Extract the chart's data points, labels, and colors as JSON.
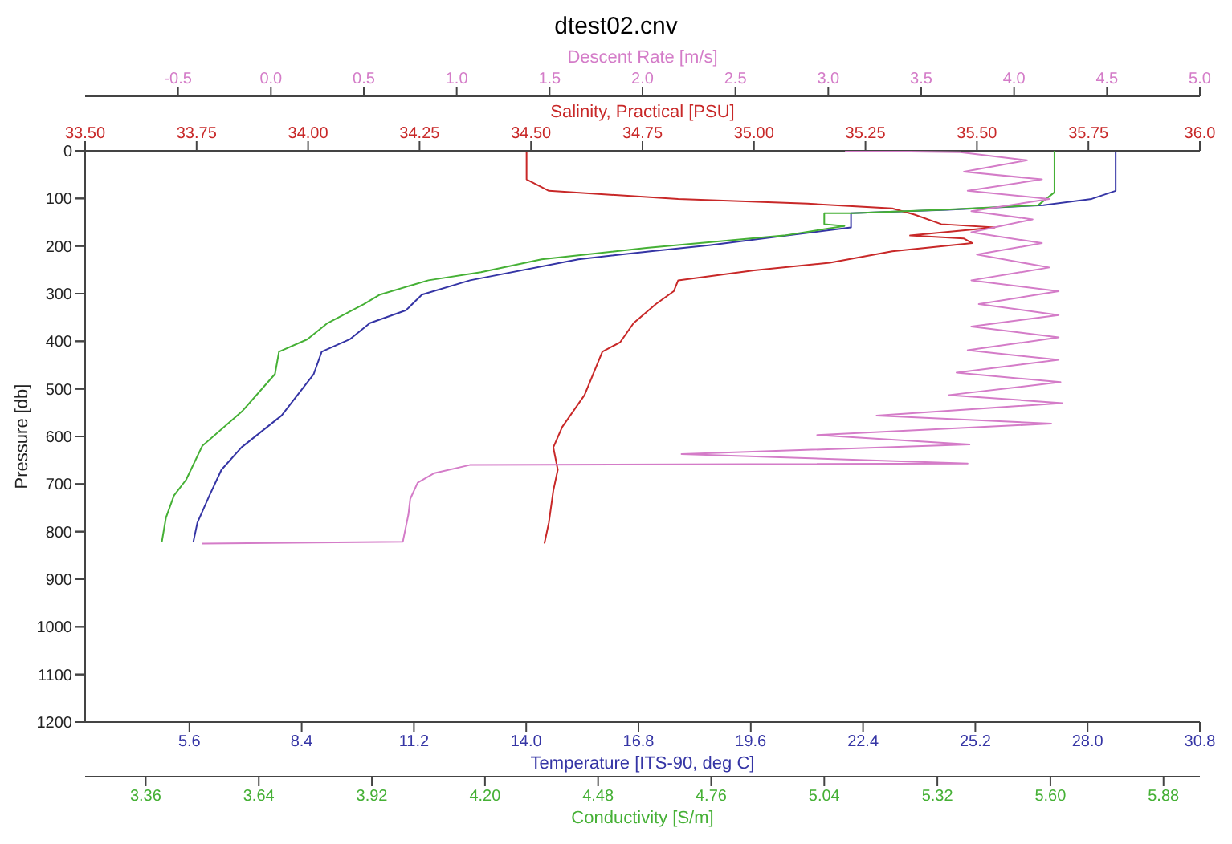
{
  "chart_data": [
    {
      "type": "line",
      "title": "dtest02.cnv",
      "ylabel": "Pressure [db]",
      "ylim": [
        1200,
        0
      ],
      "yticks": [
        0,
        100,
        200,
        300,
        400,
        500,
        600,
        700,
        800,
        900,
        1000,
        1100,
        1200
      ],
      "xlabel": "Temperature [ITS-90, deg C]",
      "xlim": [
        3.0,
        30.8
      ],
      "xticks": [
        {
          "value": 5.6,
          "label": "5.6"
        },
        {
          "value": 8.4,
          "label": "8.4"
        },
        {
          "value": 11.2,
          "label": "11.2"
        },
        {
          "value": 14,
          "label": "14.0"
        },
        {
          "value": 16.8,
          "label": "16.8"
        },
        {
          "value": 19.6,
          "label": "19.6"
        },
        {
          "value": 22.4,
          "label": "22.4"
        },
        {
          "value": 25.2,
          "label": "25.2"
        },
        {
          "value": 28,
          "label": "28.0"
        },
        {
          "value": 30.8,
          "label": "30.8"
        }
      ],
      "x2label": "Salinity, Practical [PSU]",
      "x2lim": [
        33.5,
        36.0
      ],
      "x2ticks": [
        {
          "value": 33.5,
          "label": "33.50"
        },
        {
          "value": 33.75,
          "label": "33.75"
        },
        {
          "value": 34,
          "label": "34.00"
        },
        {
          "value": 34.25,
          "label": "34.25"
        },
        {
          "value": 34.5,
          "label": "34.50"
        },
        {
          "value": 34.75,
          "label": "34.75"
        },
        {
          "value": 35,
          "label": "35.00"
        },
        {
          "value": 35.25,
          "label": "35.25"
        },
        {
          "value": 35.5,
          "label": "35.50"
        },
        {
          "value": 35.75,
          "label": "35.75"
        },
        {
          "value": 36,
          "label": "36.0"
        }
      ],
      "series": [
        {
          "color": "#3535a5",
          "x": [
            28.7,
            28.7,
            28.1,
            26.9,
            24.5,
            22.1,
            22.1,
            20.5,
            18.6,
            17.1,
            15.3,
            12.6,
            11.4,
            11.0,
            10.1,
            9.6,
            8.9,
            8.7,
            7.9,
            6.9,
            6.4,
            6.1,
            5.8,
            5.7
          ],
          "values": [
            0,
            84,
            101,
            114,
            124,
            131,
            161,
            178,
            198,
            211,
            228,
            272,
            302,
            335,
            362,
            396,
            422,
            469,
            556,
            623,
            670,
            724,
            781,
            821
          ]
        },
        {
          "color": "#c82828",
          "axis": "x2",
          "x": [
            34.49,
            34.49,
            34.54,
            34.83,
            35.12,
            35.31,
            35.36,
            35.42,
            35.54,
            35.35,
            35.47,
            35.49,
            35.31,
            35.17,
            35.0,
            34.83,
            34.82,
            34.78,
            34.73,
            34.7,
            34.66,
            34.62,
            34.57,
            34.55,
            34.56,
            34.55,
            34.54,
            34.53
          ],
          "values": [
            0,
            60,
            84,
            101,
            111,
            121,
            134,
            154,
            161,
            178,
            184,
            194,
            211,
            235,
            251,
            272,
            295,
            322,
            362,
            402,
            422,
            513,
            580,
            623,
            670,
            714,
            781,
            825
          ]
        }
      ]
    },
    {
      "type": "line",
      "ylim": [
        1200,
        0
      ],
      "yticks": [
        0,
        100,
        200,
        300,
        400,
        500,
        600,
        700,
        800,
        900,
        1000,
        1100,
        1200
      ],
      "tick_labels": "x",
      "xlabel": "Conductivity [S/m]",
      "xlim": [
        3.21,
        5.97
      ],
      "xticks": [
        {
          "value": 3.36,
          "label": "3.36"
        },
        {
          "value": 3.64,
          "label": "3.64"
        },
        {
          "value": 3.92,
          "label": "3.92"
        },
        {
          "value": 4.2,
          "label": "4.20"
        },
        {
          "value": 4.48,
          "label": "4.48"
        },
        {
          "value": 4.76,
          "label": "4.76"
        },
        {
          "value": 5.04,
          "label": "5.04"
        },
        {
          "value": 5.32,
          "label": "5.32"
        },
        {
          "value": 5.6,
          "label": "5.60"
        },
        {
          "value": 5.88,
          "label": "5.88"
        }
      ],
      "x2label": "Descent Rate [m/s]",
      "x2lim": [
        -1.0,
        5.0
      ],
      "x2ticks": [
        {
          "value": -0.5,
          "label": "-0.5"
        },
        {
          "value": 0,
          "label": "0.0"
        },
        {
          "value": 0.5,
          "label": "0.5"
        },
        {
          "value": 1,
          "label": "1.0"
        },
        {
          "value": 1.5,
          "label": "1.5"
        },
        {
          "value": 2,
          "label": "2.0"
        },
        {
          "value": 2.5,
          "label": "2.5"
        },
        {
          "value": 3,
          "label": "3.0"
        },
        {
          "value": 3.5,
          "label": "3.5"
        },
        {
          "value": 4,
          "label": "4.0"
        },
        {
          "value": 4.5,
          "label": "4.5"
        },
        {
          "value": 5,
          "label": "5.0"
        }
      ],
      "series": [
        {
          "color": "#45b035",
          "x": [
            5.61,
            5.61,
            5.57,
            5.33,
            5.11,
            5.04,
            5.04,
            5.09,
            4.94,
            4.6,
            4.34,
            4.19,
            4.06,
            3.94,
            3.9,
            3.81,
            3.76,
            3.69,
            3.68,
            3.6,
            3.5,
            3.46,
            3.43,
            3.41,
            3.4
          ],
          "values": [
            0,
            87,
            114,
            124,
            131,
            131,
            154,
            158,
            178,
            204,
            228,
            255,
            272,
            302,
            322,
            362,
            396,
            422,
            469,
            546,
            620,
            691,
            724,
            771,
            821
          ]
        },
        {
          "color": "#d47cc8",
          "axis": "x2",
          "x": [
            3.09,
            3.71,
            4.07,
            3.73,
            4.15,
            3.75,
            4.19,
            3.77,
            4.1,
            3.77,
            4.15,
            3.8,
            4.19,
            3.77,
            4.24,
            3.81,
            4.24,
            3.77,
            4.24,
            3.75,
            4.24,
            3.69,
            4.25,
            3.65,
            4.26,
            3.26,
            4.2,
            2.94,
            3.76,
            2.21,
            3.75,
            1.07,
            0.88,
            0.79,
            0.75,
            0.74,
            0.71,
            -0.37
          ],
          "values": [
            0,
            3,
            20,
            44,
            60,
            84,
            101,
            127,
            144,
            171,
            194,
            218,
            245,
            272,
            295,
            322,
            345,
            369,
            392,
            419,
            439,
            466,
            486,
            513,
            530,
            556,
            573,
            597,
            617,
            637,
            657,
            660,
            677,
            697,
            731,
            764,
            821,
            825
          ]
        }
      ]
    }
  ]
}
